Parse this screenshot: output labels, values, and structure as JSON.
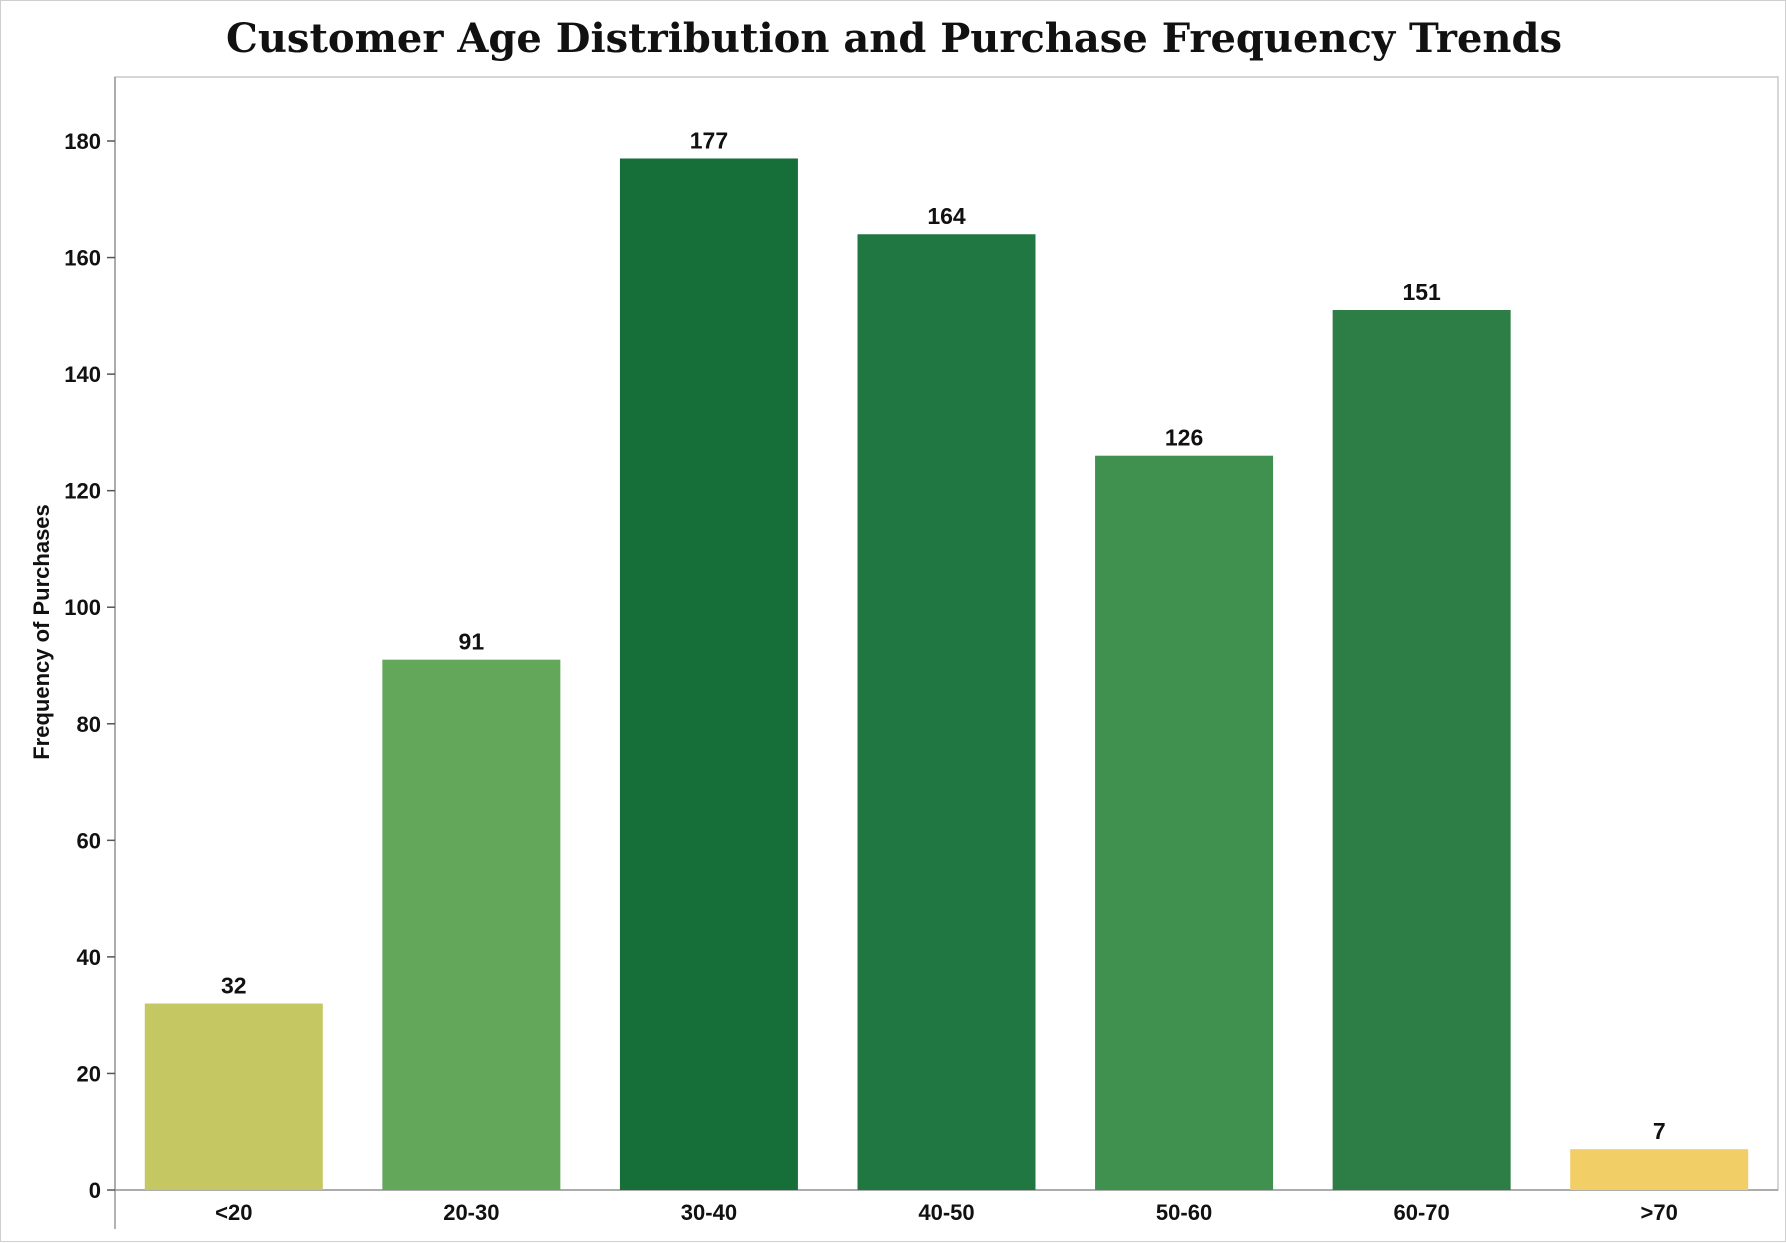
{
  "chart_data": {
    "type": "bar",
    "title": "Customer Age Distribution and Purchase Frequency Trends",
    "xlabel": "",
    "ylabel": "Frequency of Purchases",
    "categories": [
      "<20",
      "20-30",
      "30-40",
      "40-50",
      "50-60",
      "60-70",
      ">70"
    ],
    "values": [
      32,
      91,
      177,
      164,
      126,
      151,
      7
    ],
    "colors": [
      "#c5c862",
      "#63a75a",
      "#166f39",
      "#207742",
      "#40904f",
      "#2d7d47",
      "#f1ce66"
    ],
    "ylim": [
      0,
      190
    ],
    "yticks": [
      0,
      20,
      40,
      60,
      80,
      100,
      120,
      140,
      160,
      180
    ],
    "grid": false,
    "legend": "none",
    "data_labels": true
  }
}
